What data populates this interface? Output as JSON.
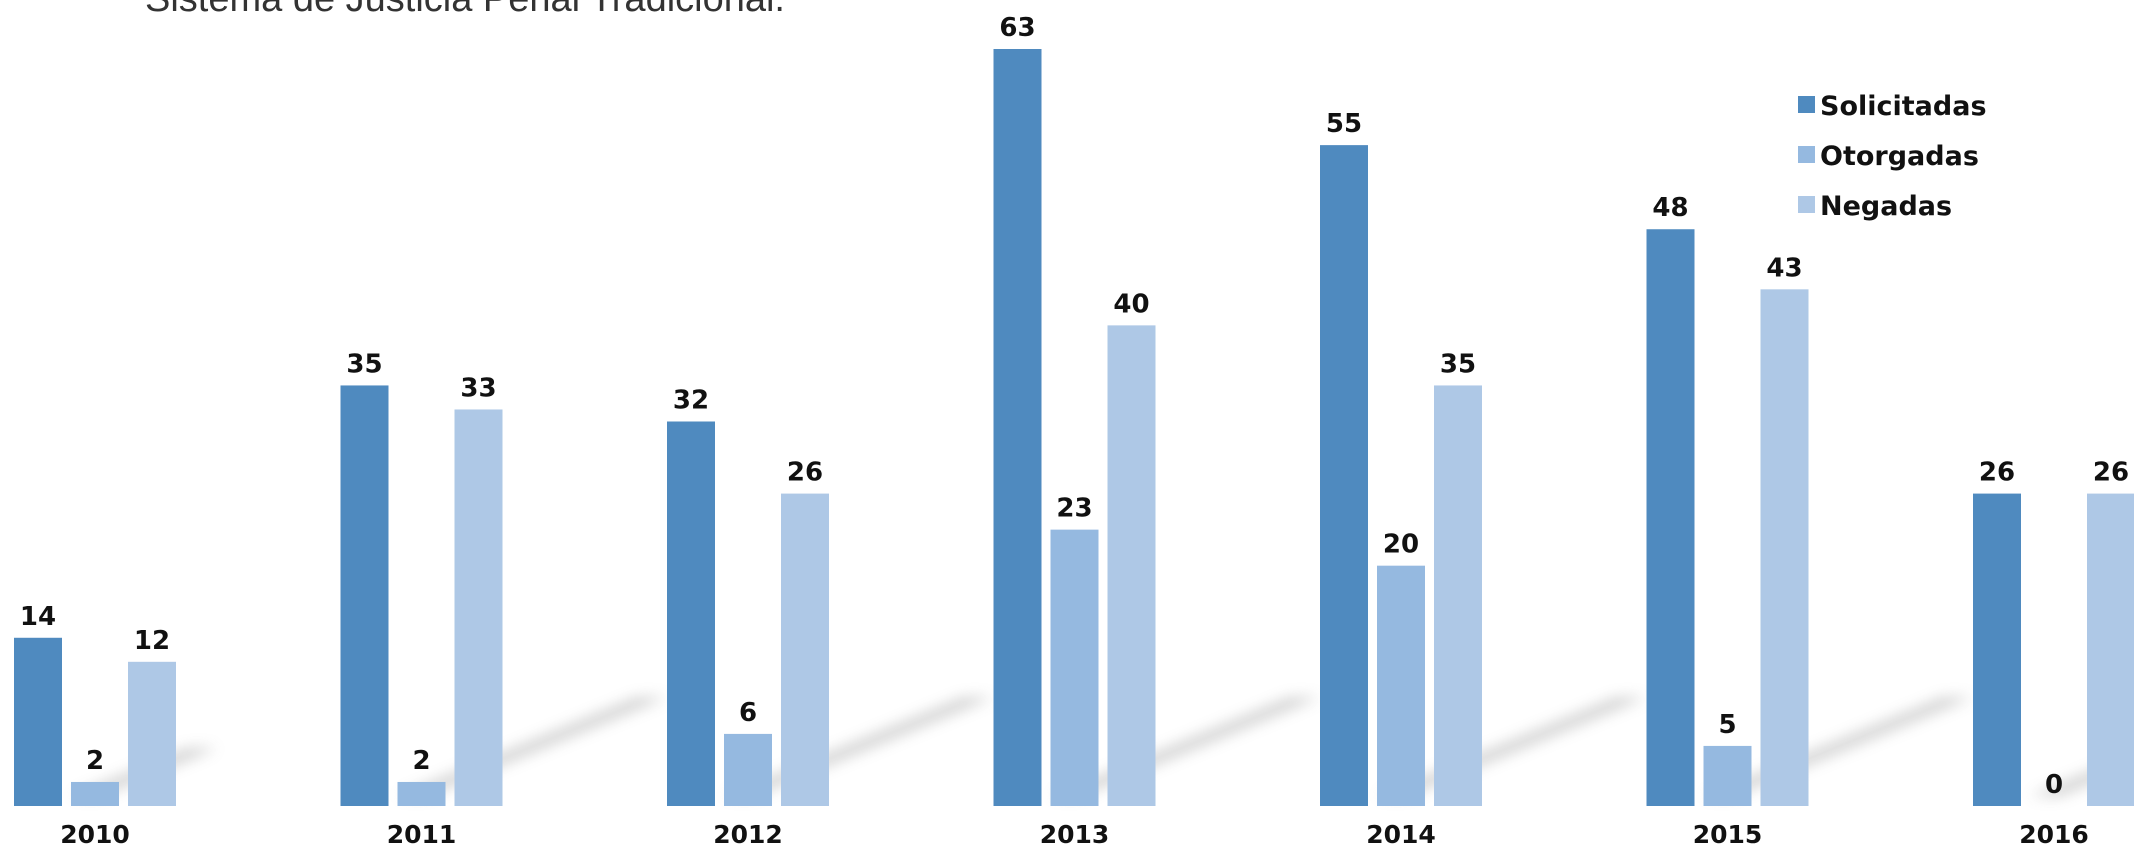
{
  "chart_data": {
    "type": "bar",
    "title": "Sistema de Justicia Penal Tradicional.",
    "categories": [
      "2010",
      "2011",
      "2012",
      "2013",
      "2014",
      "2015",
      "2016"
    ],
    "series": [
      {
        "name": "Solicitadas",
        "values": [
          14,
          35,
          32,
          63,
          55,
          48,
          26
        ],
        "color": "#4f8abf"
      },
      {
        "name": "Otorgadas",
        "values": [
          2,
          2,
          6,
          23,
          20,
          5,
          0
        ],
        "color": "#95b9e0"
      },
      {
        "name": "Negadas",
        "values": [
          12,
          33,
          26,
          40,
          35,
          43,
          26
        ],
        "color": "#aec8e6"
      }
    ],
    "xlabel": "",
    "ylabel": "",
    "ylim": [
      0,
      63
    ],
    "grid": false,
    "legend_position": "top-right",
    "data_labels": true
  }
}
